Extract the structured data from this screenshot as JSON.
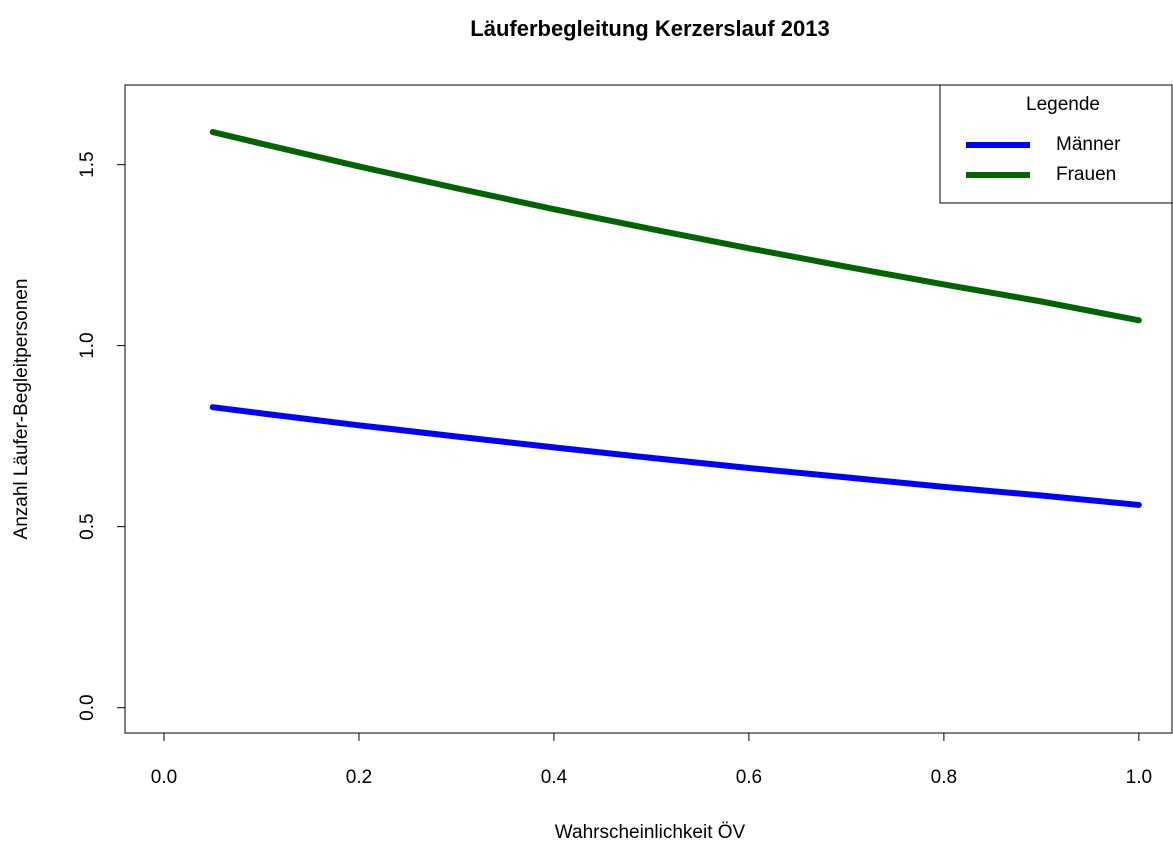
{
  "chart_data": {
    "type": "line",
    "title": "Läuferbegleitung Kerzerslauf 2013",
    "x_label": "Wahrscheinlichkeit ÖV",
    "y_label": "Anzahl Läufer-Begleitpersonen",
    "x": [
      0.05,
      0.1,
      0.2,
      0.3,
      0.4,
      0.5,
      0.6,
      0.7,
      0.8,
      0.9,
      1.0
    ],
    "series": [
      {
        "name": "Männer",
        "color": "#0000ff",
        "values": [
          0.83,
          0.813,
          0.78,
          0.749,
          0.719,
          0.69,
          0.662,
          0.636,
          0.61,
          0.586,
          0.56
        ]
      },
      {
        "name": "Frauen",
        "color": "#006400",
        "values": [
          1.59,
          1.558,
          1.495,
          1.435,
          1.377,
          1.322,
          1.269,
          1.218,
          1.169,
          1.122,
          1.07
        ]
      }
    ],
    "xlim": [
      -0.04,
      1.034
    ],
    "ylim": [
      -0.07,
      1.72
    ],
    "xticks": [
      {
        "value": 0,
        "label": "0.0"
      },
      0.2,
      0.4,
      0.6,
      0.8,
      {
        "value": 1,
        "label": "1.0"
      }
    ],
    "yticks": [
      {
        "value": 0,
        "label": "0.0"
      },
      0.5,
      {
        "value": 1,
        "label": "1.0"
      },
      1.5
    ],
    "legend_title": "Legende",
    "legend": "topright",
    "grid": false
  }
}
